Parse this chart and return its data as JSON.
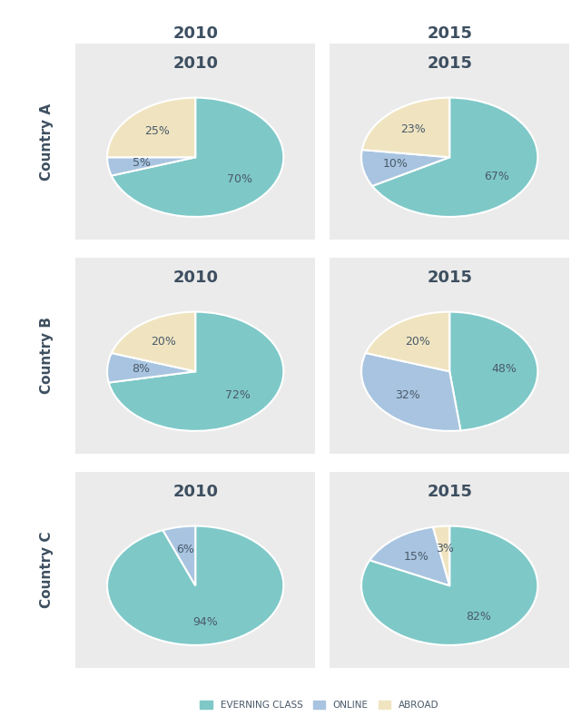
{
  "colors": {
    "evening": "#7ec8c8",
    "online": "#a8c4e0",
    "abroad": "#f0e4c0"
  },
  "countries": [
    "Country A",
    "Country B",
    "Country C"
  ],
  "data_2010": [
    [
      70,
      5,
      25
    ],
    [
      72,
      8,
      20
    ],
    [
      94,
      6,
      0
    ]
  ],
  "data_2015": [
    [
      67,
      10,
      23
    ],
    [
      48,
      32,
      20
    ],
    [
      82,
      15,
      3
    ]
  ],
  "labels_2010": [
    [
      "70%",
      "5%",
      "25%"
    ],
    [
      "72%",
      "8%",
      "20%"
    ],
    [
      "94%",
      "6%",
      ""
    ]
  ],
  "labels_2015": [
    [
      "67%",
      "10%",
      "23%"
    ],
    [
      "48%",
      "32%",
      "20%"
    ],
    [
      "82%",
      "15%",
      "3%"
    ]
  ],
  "legend_labels": [
    "EVERNING CLASS",
    "ONLINE",
    "ABROAD"
  ],
  "text_color": "#3d4f60",
  "label_color": "#4a5a6a",
  "bg_outer": "#ffffff",
  "bg_card": "#ebebeb",
  "year_fontsize": 13,
  "country_fontsize": 11,
  "pct_fontsize": 9
}
